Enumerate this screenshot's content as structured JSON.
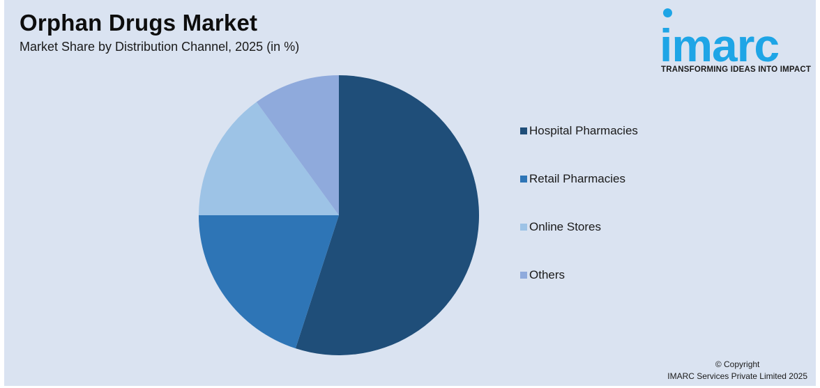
{
  "header": {
    "title": "Orphan Drugs Market",
    "subtitle": "Market Share by Distribution Channel, 2025 (in %)"
  },
  "logo": {
    "name": "imarc",
    "tagline": "TRANSFORMING IDEAS INTO IMPACT",
    "color": "#1ea5e6"
  },
  "footer": {
    "copyright": "© Copyright",
    "company": "IMARC Services Private Limited 2025"
  },
  "chart_data": {
    "type": "pie",
    "title": "Orphan Drugs Market",
    "subtitle": "Market Share by Distribution Channel, 2025 (in %)",
    "categories": [
      "Hospital Pharmacies",
      "Retail Pharmacies",
      "Online Stores",
      "Others"
    ],
    "values": [
      55,
      20,
      15,
      10
    ],
    "colors": [
      "#1f4e79",
      "#2e75b6",
      "#9dc3e6",
      "#8faadc"
    ],
    "legend_position": "right",
    "start": "top, clockwise"
  }
}
